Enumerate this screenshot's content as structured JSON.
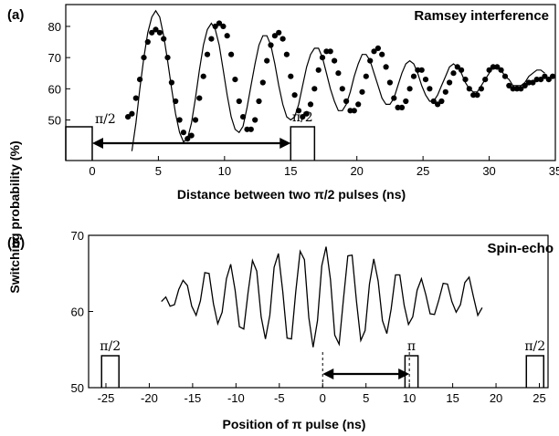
{
  "shared_ylabel": "Switching probability (%)",
  "chart_data": [
    {
      "panel_label": "(a)",
      "type": "scatter",
      "title": "Ramsey interference",
      "xlabel": "Distance between two π/2 pulses (ns)",
      "xlim": [
        -2,
        35
      ],
      "ylim": [
        37,
        87
      ],
      "xticks": [
        0,
        5,
        10,
        15,
        20,
        25,
        30,
        35
      ],
      "yticks": [
        50,
        60,
        70,
        80
      ],
      "pulses": [
        {
          "label": "π/2",
          "x_start": -2,
          "x_end": 0
        },
        {
          "label": "π/2",
          "x_start": 15,
          "x_end": 16.8
        }
      ],
      "arrow": {
        "from": 0,
        "to": 15
      },
      "series": [
        {
          "name": "",
          "style": "markers",
          "x": [
            2.7,
            3.0,
            3.3,
            3.6,
            3.9,
            4.2,
            4.5,
            4.8,
            5.1,
            5.4,
            5.7,
            6.0,
            6.3,
            6.6,
            6.9,
            7.2,
            7.5,
            7.8,
            8.1,
            8.4,
            8.7,
            9.0,
            9.3,
            9.6,
            9.9,
            10.2,
            10.5,
            10.8,
            11.1,
            11.4,
            11.7,
            12.0,
            12.3,
            12.6,
            12.9,
            13.2,
            13.5,
            13.8,
            14.1,
            14.4,
            14.7,
            15.0,
            15.3,
            15.6,
            15.9,
            16.2,
            16.5,
            16.8,
            17.1,
            17.4,
            17.7,
            18.0,
            18.3,
            18.6,
            18.9,
            19.2,
            19.5,
            19.8,
            20.1,
            20.4,
            20.7,
            21.0,
            21.3,
            21.6,
            21.9,
            22.2,
            22.5,
            22.8,
            23.1,
            23.4,
            23.7,
            24.0,
            24.3,
            24.6,
            24.9,
            25.2,
            25.5,
            25.8,
            26.1,
            26.4,
            26.7,
            27.0,
            27.3,
            27.6,
            27.9,
            28.2,
            28.5,
            28.8,
            29.1,
            29.4,
            29.7,
            30.0,
            30.3,
            30.6,
            30.9,
            31.2,
            31.5,
            31.8,
            32.1,
            32.4,
            32.7,
            33.0,
            33.3,
            33.6,
            33.9,
            34.2,
            34.5,
            34.8
          ],
          "y": [
            51,
            52,
            57,
            63,
            70,
            75,
            78,
            79,
            78,
            76,
            70,
            62,
            56,
            50,
            46,
            44,
            45,
            50,
            57,
            64,
            71,
            76,
            80,
            81,
            80,
            77,
            71,
            63,
            56,
            51,
            47,
            47,
            50,
            56,
            62,
            69,
            74,
            77,
            78,
            76,
            71,
            64,
            58,
            53,
            51,
            52,
            55,
            60,
            66,
            70,
            72,
            72,
            69,
            65,
            60,
            56,
            53,
            53,
            55,
            59,
            64,
            69,
            72,
            73,
            71,
            67,
            62,
            57,
            54,
            54,
            56,
            60,
            64,
            66,
            66,
            63,
            60,
            56,
            55,
            56,
            59,
            62,
            65,
            67,
            66,
            63,
            60,
            58,
            58,
            60,
            63,
            66,
            67,
            67,
            66,
            64,
            61,
            60,
            60,
            60,
            61,
            62,
            62,
            63,
            63,
            64,
            63,
            64
          ]
        },
        {
          "name": "",
          "style": "line",
          "x": [
            3.0,
            3.3,
            3.6,
            3.9,
            4.2,
            4.5,
            4.8,
            5.1,
            5.4,
            5.7,
            6.0,
            6.3,
            6.6,
            6.9,
            7.2,
            7.5,
            7.8,
            8.1,
            8.4,
            8.7,
            9.0,
            9.3,
            9.6,
            9.9,
            10.2,
            10.5,
            10.8,
            11.1,
            11.4,
            11.7,
            12.0,
            12.3,
            12.6,
            12.9,
            13.2,
            13.5,
            13.8,
            14.1,
            14.4,
            14.7,
            15.0,
            15.3,
            15.6,
            15.9,
            16.2,
            16.5,
            16.8,
            17.1,
            17.4,
            17.7,
            18.0,
            18.3,
            18.6,
            18.9,
            19.2,
            19.5,
            19.8,
            20.1,
            20.4,
            20.7,
            21.0,
            21.3,
            21.6,
            21.9,
            22.2,
            22.5,
            22.8,
            23.1,
            23.4,
            23.7,
            24.0,
            24.3,
            24.6,
            24.9,
            25.2,
            25.5,
            25.8,
            26.1,
            26.4,
            26.7,
            27.0,
            27.3,
            27.6,
            27.9,
            28.2,
            28.5,
            28.8,
            29.1,
            29.4,
            29.7,
            30.0,
            30.3,
            30.6,
            30.9,
            31.2,
            31.5,
            31.8,
            32.1,
            32.4,
            32.7,
            33.0,
            33.3,
            33.6,
            33.9,
            34.2
          ],
          "y": [
            40,
            49,
            60,
            70,
            78,
            83,
            85,
            83,
            77,
            69,
            60,
            52,
            46,
            43,
            44,
            49,
            57,
            66,
            74,
            79,
            81,
            79,
            74,
            66,
            58,
            51,
            47,
            46,
            48,
            54,
            61,
            68,
            74,
            77,
            77,
            74,
            68,
            61,
            55,
            51,
            50,
            51,
            55,
            61,
            67,
            71,
            73,
            73,
            70,
            65,
            60,
            56,
            53,
            53,
            55,
            59,
            64,
            68,
            71,
            71,
            69,
            65,
            61,
            57,
            55,
            55,
            57,
            61,
            65,
            68,
            69,
            68,
            65,
            61,
            58,
            56,
            56,
            58,
            61,
            64,
            67,
            68,
            67,
            65,
            62,
            60,
            59,
            59,
            61,
            63,
            65,
            67,
            67,
            66,
            64,
            63,
            61,
            61,
            61,
            62,
            64,
            65,
            66,
            66,
            65
          ]
        }
      ]
    },
    {
      "panel_label": "(b)",
      "type": "line",
      "title": "Spin-echo",
      "xlabel": "Position of π pulse (ns)",
      "xlim": [
        -27,
        26
      ],
      "ylim": [
        50,
        70
      ],
      "xticks": [
        -25,
        -20,
        -15,
        -10,
        -5,
        0,
        5,
        10,
        15,
        20,
        25
      ],
      "yticks": [
        50,
        60,
        70
      ],
      "pulses": [
        {
          "label": "π/2",
          "x_start": -25.5,
          "x_end": -23.5
        },
        {
          "label": "π",
          "x_start": 9.5,
          "x_end": 11
        },
        {
          "label": "π/2",
          "x_start": 23.5,
          "x_end": 25.5
        }
      ],
      "arrow": {
        "from": 0,
        "to": 10
      },
      "series": [
        {
          "name": "",
          "style": "line",
          "x": [
            -18.6,
            -18.1,
            -17.6,
            -17.1,
            -16.6,
            -16.1,
            -15.6,
            -15.1,
            -14.6,
            -14.1,
            -13.6,
            -13.1,
            -12.6,
            -12.1,
            -11.6,
            -11.1,
            -10.6,
            -10.1,
            -9.6,
            -9.1,
            -8.6,
            -8.1,
            -7.6,
            -7.1,
            -6.6,
            -6.1,
            -5.6,
            -5.1,
            -4.6,
            -4.1,
            -3.6,
            -3.1,
            -2.6,
            -2.1,
            -1.6,
            -1.1,
            -0.6,
            -0.1,
            0.4,
            0.9,
            1.4,
            1.9,
            2.4,
            2.9,
            3.4,
            3.9,
            4.4,
            4.9,
            5.4,
            5.9,
            6.4,
            6.9,
            7.4,
            7.9,
            8.4,
            8.9,
            9.4,
            9.9,
            10.4,
            10.9,
            11.4,
            11.9,
            12.4,
            12.9,
            13.4,
            13.9,
            14.4,
            14.9,
            15.4,
            15.9,
            16.4,
            16.9,
            17.4,
            17.9,
            18.4
          ],
          "y": [
            61.3,
            61.9,
            60.7,
            60.9,
            62.9,
            64.1,
            63.4,
            60.7,
            59.5,
            61.4,
            65.1,
            65.0,
            61.0,
            58.4,
            59.9,
            64.3,
            66.2,
            62.8,
            58.0,
            57.7,
            62.5,
            66.7,
            65.3,
            59.3,
            56.4,
            59.5,
            65.8,
            67.6,
            62.6,
            56.5,
            56.4,
            62.6,
            67.9,
            66.8,
            59.2,
            55.3,
            58.8,
            66.0,
            68.5,
            64.2,
            56.9,
            55.7,
            61.6,
            67.3,
            67.4,
            61.3,
            56.2,
            57.5,
            63.6,
            66.9,
            64.0,
            58.8,
            57.1,
            60.3,
            64.8,
            64.8,
            60.8,
            58.3,
            59.3,
            62.8,
            64.3,
            62.2,
            59.7,
            59.6,
            61.5,
            63.7,
            63.6,
            61.3,
            59.9,
            60.9,
            63.8,
            64.5,
            61.9,
            59.5,
            60.5
          ]
        }
      ]
    }
  ]
}
